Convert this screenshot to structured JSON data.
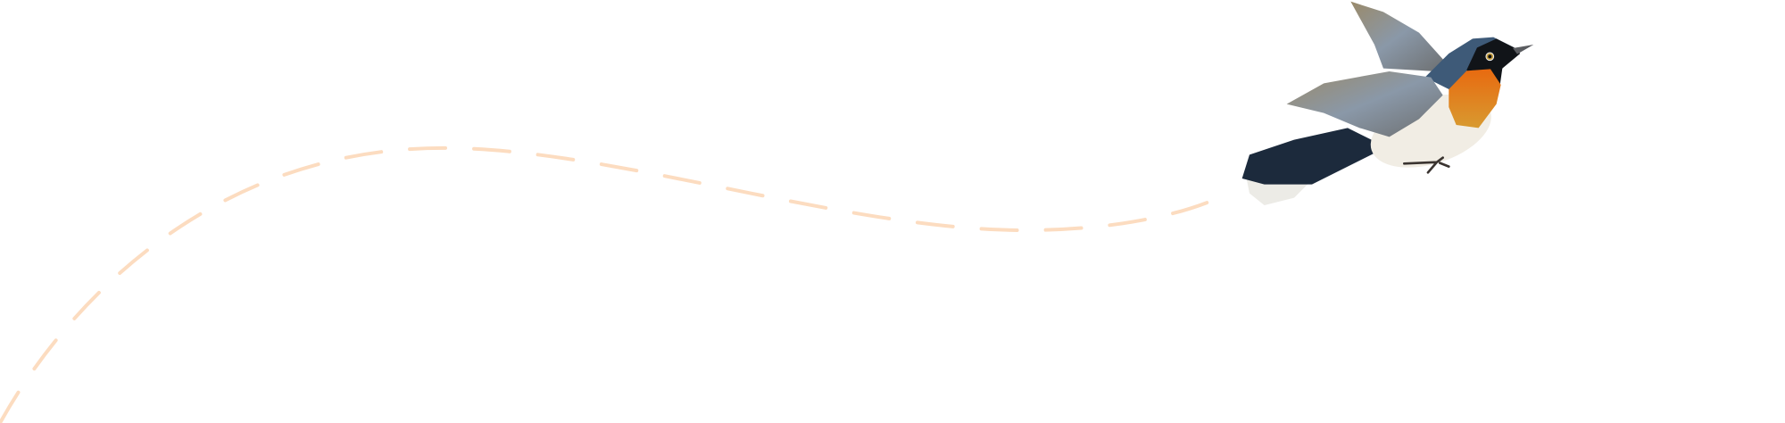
{
  "scene": {
    "background_color": "#ffffff",
    "flight_path": {
      "style": "dashed",
      "color": "#fcdcc0"
    },
    "bird": {
      "icon": "flying-bird-illustration",
      "colors": {
        "back_and_tail": "#1c2a3c",
        "head": "#3e5a78",
        "mask": "#111418",
        "throat": "#e0701a",
        "belly": "#f1ede4",
        "wings": "#8a8c8a",
        "tail_tips": "#ecebe6"
      }
    }
  }
}
